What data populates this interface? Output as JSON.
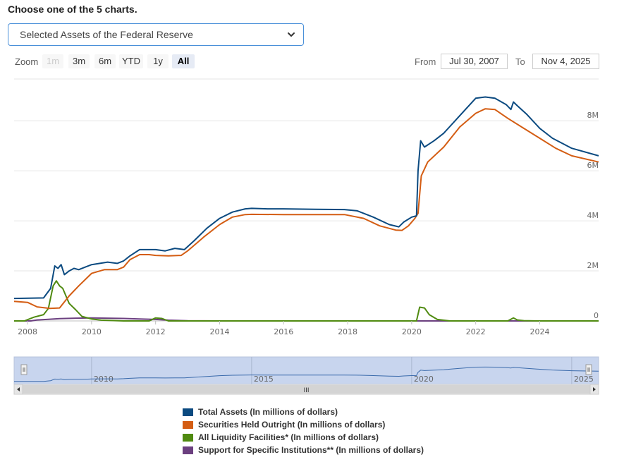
{
  "page": {
    "heading": "Choose one of the 5 charts.",
    "chart_select": {
      "selected": "Selected Assets of the Federal Reserve"
    }
  },
  "zoom": {
    "label": "Zoom",
    "buttons": [
      {
        "label": "1m",
        "state": "disabled"
      },
      {
        "label": "3m",
        "state": "normal"
      },
      {
        "label": "6m",
        "state": "normal"
      },
      {
        "label": "YTD",
        "state": "normal"
      },
      {
        "label": "1y",
        "state": "normal"
      },
      {
        "label": "All",
        "state": "active"
      }
    ]
  },
  "range": {
    "from_label": "From",
    "from_value": "Jul 30, 2007",
    "to_label": "To",
    "to_value": "Nov 4, 2025"
  },
  "navigator": {
    "labels": [
      "2010",
      "2015",
      "2020",
      "2025"
    ],
    "scroll_grip": "III"
  },
  "colors": {
    "total": "#0b4a80",
    "securities": "#d45d13",
    "liquidity": "#4f8a10",
    "support": "#6b3f7f",
    "grid": "#e6e6e6",
    "axis_text": "#666666",
    "nav_fill": "#c8d5ee",
    "nav_line": "#3a6aab"
  },
  "chart_data": {
    "type": "line",
    "title": "",
    "xlabel": "",
    "ylabel": "",
    "x_ticks": [
      "2008",
      "2010",
      "2012",
      "2014",
      "2016",
      "2018",
      "2020",
      "2022",
      "2024"
    ],
    "y_ticks": [
      "0",
      "2M",
      "4M",
      "6M",
      "8M"
    ],
    "xlim": [
      2007.58,
      2025.84
    ],
    "ylim": [
      0,
      9500000
    ],
    "legend_position": "bottom",
    "series": [
      {
        "name": "Total Assets (In millions of dollars)",
        "color": "#0b4a80",
        "x": [
          2007.58,
          2008.5,
          2008.72,
          2008.85,
          2008.95,
          2009.05,
          2009.15,
          2009.3,
          2009.45,
          2009.6,
          2009.8,
          2010.0,
          2010.5,
          2010.8,
          2011.0,
          2011.2,
          2011.5,
          2011.8,
          2012.0,
          2012.3,
          2012.6,
          2012.9,
          2013.2,
          2013.6,
          2014.0,
          2014.4,
          2014.8,
          2015.0,
          2015.5,
          2016.0,
          2017.0,
          2017.9,
          2018.3,
          2018.8,
          2019.3,
          2019.6,
          2019.75,
          2020.0,
          2020.15,
          2020.2,
          2020.28,
          2020.4,
          2020.7,
          2021.0,
          2021.5,
          2022.0,
          2022.3,
          2022.6,
          2022.95,
          2023.1,
          2023.18,
          2023.3,
          2023.6,
          2024.0,
          2024.4,
          2025.0,
          2025.84
        ],
        "y": [
          900000,
          920000,
          1300000,
          2200000,
          2100000,
          2250000,
          1850000,
          2000000,
          2100000,
          2050000,
          2150000,
          2250000,
          2350000,
          2300000,
          2400000,
          2600000,
          2850000,
          2850000,
          2850000,
          2800000,
          2900000,
          2850000,
          3200000,
          3700000,
          4100000,
          4350000,
          4480000,
          4500000,
          4480000,
          4480000,
          4460000,
          4450000,
          4400000,
          4150000,
          3850000,
          3760000,
          3950000,
          4150000,
          4200000,
          6000000,
          7200000,
          6950000,
          7200000,
          7500000,
          8200000,
          8900000,
          8950000,
          8900000,
          8650000,
          8450000,
          8750000,
          8600000,
          8250000,
          7700000,
          7300000,
          6900000,
          6600000
        ]
      },
      {
        "name": "Securities Held Outright (In millions of dollars)",
        "color": "#d45d13",
        "x": [
          2007.58,
          2008.0,
          2008.3,
          2008.7,
          2009.0,
          2009.3,
          2009.6,
          2010.0,
          2010.4,
          2010.8,
          2011.0,
          2011.2,
          2011.5,
          2011.8,
          2012.0,
          2012.4,
          2012.8,
          2013.0,
          2013.5,
          2014.0,
          2014.4,
          2014.8,
          2015.0,
          2016.0,
          2017.0,
          2017.9,
          2018.5,
          2019.0,
          2019.5,
          2019.7,
          2019.9,
          2020.1,
          2020.2,
          2020.3,
          2020.5,
          2021.0,
          2021.5,
          2022.0,
          2022.3,
          2022.6,
          2023.0,
          2023.5,
          2024.0,
          2024.5,
          2025.0,
          2025.84
        ],
        "y": [
          780000,
          740000,
          560000,
          500000,
          520000,
          1000000,
          1400000,
          1900000,
          2050000,
          2050000,
          2150000,
          2450000,
          2650000,
          2650000,
          2620000,
          2600000,
          2620000,
          2800000,
          3350000,
          3850000,
          4150000,
          4250000,
          4260000,
          4250000,
          4250000,
          4250000,
          4100000,
          3800000,
          3630000,
          3620000,
          3800000,
          4100000,
          4300000,
          5800000,
          6350000,
          6950000,
          7750000,
          8300000,
          8480000,
          8450000,
          8100000,
          7700000,
          7300000,
          6900000,
          6600000,
          6350000
        ]
      },
      {
        "name": "All Liquidity Facilities* (In millions of dollars)",
        "color": "#4f8a10",
        "x": [
          2007.58,
          2007.9,
          2008.2,
          2008.5,
          2008.65,
          2008.8,
          2008.9,
          2009.0,
          2009.1,
          2009.2,
          2009.3,
          2009.5,
          2009.7,
          2010.0,
          2010.3,
          2011.0,
          2011.8,
          2012.0,
          2012.2,
          2012.4,
          2013.0,
          2019.8,
          2020.15,
          2020.25,
          2020.4,
          2020.55,
          2020.8,
          2021.2,
          2022.0,
          2023.0,
          2023.18,
          2023.3,
          2023.5,
          2024.0,
          2025.0,
          2025.84
        ],
        "y": [
          0,
          0,
          150000,
          250000,
          500000,
          1400000,
          1600000,
          1400000,
          1300000,
          1000000,
          700000,
          450000,
          180000,
          80000,
          30000,
          0,
          0,
          120000,
          100000,
          0,
          0,
          0,
          0,
          550000,
          520000,
          250000,
          60000,
          0,
          0,
          0,
          120000,
          40000,
          10000,
          0,
          0,
          0
        ]
      },
      {
        "name": "Support for Specific Institutions** (In millions of dollars)",
        "color": "#6b3f7f",
        "x": [
          2007.58,
          2008.1,
          2008.3,
          2008.6,
          2009.0,
          2009.5,
          2010.0,
          2010.5,
          2011.0,
          2011.5,
          2012.0,
          2012.4,
          2013.0,
          2014.0,
          2020.0,
          2022.0,
          2025.84
        ],
        "y": [
          0,
          0,
          40000,
          60000,
          90000,
          110000,
          120000,
          110000,
          100000,
          80000,
          60000,
          30000,
          5000,
          0,
          0,
          0,
          0
        ]
      }
    ]
  }
}
